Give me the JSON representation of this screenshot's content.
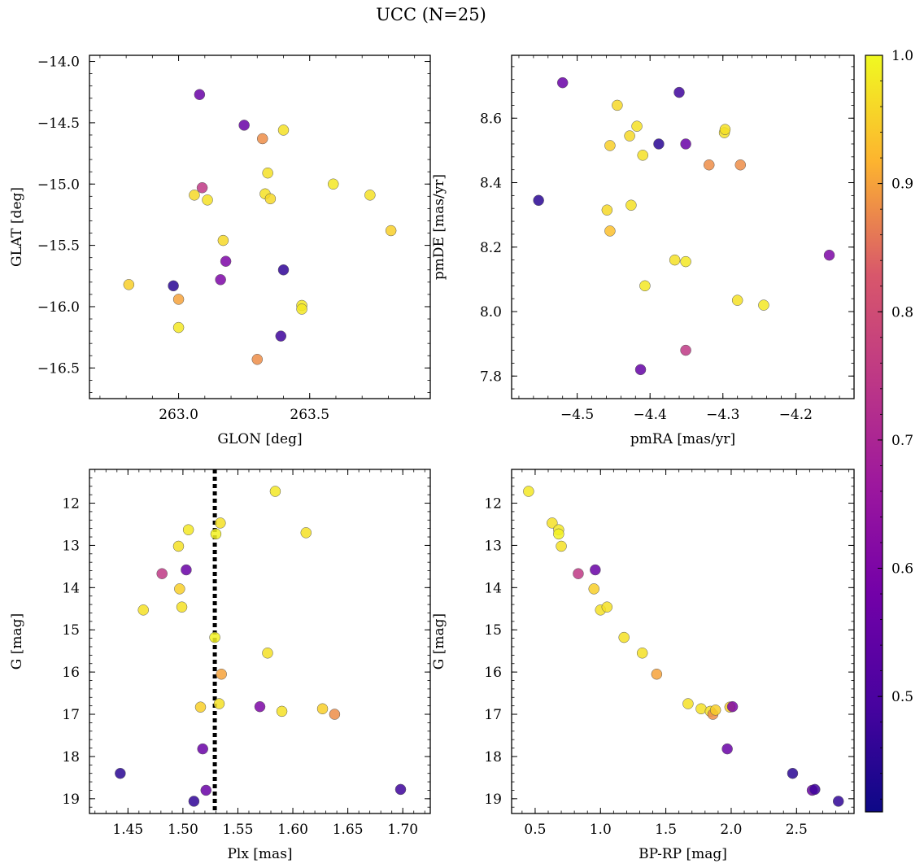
{
  "suptitle": "UCC (N=25)",
  "colorbar": {
    "ticks": [
      0.5,
      0.6,
      0.7,
      0.8,
      0.9,
      1.0
    ],
    "tick_labels": [
      "0.5",
      "0.6",
      "0.7",
      "0.8",
      "0.9",
      "1.0"
    ],
    "range": [
      0.41,
      1.0
    ],
    "colormap": "plasma"
  },
  "chart_data": [
    {
      "type": "scatter",
      "xlabel": "GLON [deg]",
      "ylabel": "GLAT [deg]",
      "xlim": [
        262.66,
        263.96
      ],
      "ylim": [
        -16.75,
        -13.95
      ],
      "xticks": [
        263.0,
        263.5
      ],
      "xtick_labels": [
        "263.0",
        "263.5"
      ],
      "yticks": [
        -14.0,
        -14.5,
        -15.0,
        -15.5,
        -16.0,
        -16.5
      ],
      "ytick_labels": [
        "−14.0",
        "−14.5",
        "−15.0",
        "−15.5",
        "−16.0",
        "−16.5"
      ],
      "x": [
        263.08,
        263.25,
        263.32,
        263.4,
        263.34,
        263.59,
        263.73,
        263.09,
        263.06,
        263.11,
        263.33,
        263.35,
        263.81,
        263.17,
        263.18,
        263.16,
        263.4,
        262.81,
        262.98,
        263.0,
        263.47,
        263.47,
        263.0,
        263.39,
        263.3
      ],
      "y": [
        -14.27,
        -14.52,
        -14.63,
        -14.56,
        -14.91,
        -15.0,
        -15.09,
        -15.03,
        -15.09,
        -15.13,
        -15.08,
        -15.12,
        -15.38,
        -15.46,
        -15.63,
        -15.78,
        -15.7,
        -15.82,
        -15.83,
        -15.94,
        -15.99,
        -16.02,
        -16.17,
        -16.24,
        -16.43
      ],
      "c": [
        0.56,
        0.56,
        0.88,
        0.97,
        0.97,
        0.98,
        0.97,
        0.75,
        0.96,
        0.97,
        0.97,
        0.96,
        0.95,
        0.96,
        0.6,
        0.6,
        0.46,
        0.95,
        0.45,
        0.9,
        0.98,
        0.98,
        0.98,
        0.48,
        0.88
      ]
    },
    {
      "type": "scatter",
      "xlabel": "pmRA [mas/yr]",
      "ylabel": "pmDE [mas/yr]",
      "xlim": [
        -4.59,
        -4.12
      ],
      "ylim": [
        7.73,
        8.795
      ],
      "xticks": [
        -4.5,
        -4.4,
        -4.3,
        -4.2
      ],
      "xtick_labels": [
        "−4.5",
        "−4.4",
        "−4.3",
        "−4.2"
      ],
      "yticks": [
        7.8,
        8.0,
        8.2,
        8.4,
        8.6
      ],
      "ytick_labels": [
        "7.8",
        "8.0",
        "8.2",
        "8.4",
        "8.6"
      ],
      "x": [
        -4.52,
        -4.36,
        -4.445,
        -4.418,
        -4.428,
        -4.455,
        -4.388,
        -4.351,
        -4.41,
        -4.298,
        -4.297,
        -4.319,
        -4.276,
        -4.553,
        -4.426,
        -4.459,
        -4.455,
        -4.366,
        -4.351,
        -4.407,
        -4.154,
        -4.28,
        -4.244,
        -4.351,
        -4.413
      ],
      "y": [
        8.71,
        8.68,
        8.64,
        8.575,
        8.545,
        8.515,
        8.52,
        8.52,
        8.485,
        8.555,
        8.565,
        8.455,
        8.455,
        8.345,
        8.33,
        8.315,
        8.25,
        8.16,
        8.155,
        8.08,
        8.175,
        8.035,
        8.02,
        7.88,
        7.82
      ],
      "c": [
        0.56,
        0.48,
        0.96,
        0.97,
        0.96,
        0.95,
        0.45,
        0.56,
        0.97,
        0.97,
        0.97,
        0.88,
        0.88,
        0.45,
        0.97,
        0.96,
        0.93,
        0.97,
        0.98,
        0.98,
        0.6,
        0.97,
        0.98,
        0.75,
        0.55
      ]
    },
    {
      "type": "scatter",
      "xlabel": "Plx [mas]",
      "ylabel": "G [mag]",
      "xlim": [
        1.415,
        1.725
      ],
      "ylim": [
        19.35,
        11.2
      ],
      "y_inverted": true,
      "vline": 1.529,
      "xticks": [
        1.45,
        1.5,
        1.55,
        1.6,
        1.65,
        1.7
      ],
      "xtick_labels": [
        "1.45",
        "1.50",
        "1.55",
        "1.60",
        "1.65",
        "1.70"
      ],
      "yticks": [
        12,
        13,
        14,
        15,
        16,
        17,
        18,
        19
      ],
      "ytick_labels": [
        "12",
        "13",
        "14",
        "15",
        "16",
        "17",
        "18",
        "19"
      ],
      "x": [
        1.584,
        1.534,
        1.505,
        1.53,
        1.612,
        1.496,
        1.481,
        1.503,
        1.497,
        1.499,
        1.464,
        1.529,
        1.577,
        1.535,
        1.533,
        1.516,
        1.57,
        1.59,
        1.627,
        1.638,
        1.518,
        1.443,
        1.521,
        1.51,
        1.698
      ],
      "y": [
        11.72,
        12.47,
        12.63,
        12.73,
        12.7,
        13.02,
        13.67,
        13.58,
        14.03,
        14.46,
        14.53,
        15.18,
        15.55,
        16.05,
        16.75,
        16.83,
        16.82,
        16.93,
        16.87,
        17.0,
        17.82,
        18.4,
        18.8,
        19.06,
        18.78
      ],
      "c": [
        0.98,
        0.97,
        0.98,
        0.99,
        0.97,
        0.97,
        0.75,
        0.56,
        0.95,
        0.97,
        0.97,
        0.99,
        0.97,
        0.9,
        0.97,
        0.95,
        0.6,
        0.97,
        0.95,
        0.88,
        0.56,
        0.45,
        0.56,
        0.46,
        0.48
      ]
    },
    {
      "type": "scatter",
      "xlabel": "BP-RP [mag]",
      "ylabel": "G [mag]",
      "xlim": [
        0.32,
        2.94
      ],
      "ylim": [
        19.35,
        11.2
      ],
      "y_inverted": true,
      "xticks": [
        0.5,
        1.0,
        1.5,
        2.0,
        2.5
      ],
      "xtick_labels": [
        "0.5",
        "1.0",
        "1.5",
        "2.0",
        "2.5"
      ],
      "yticks": [
        12,
        13,
        14,
        15,
        16,
        17,
        18,
        19
      ],
      "ytick_labels": [
        "12",
        "13",
        "14",
        "15",
        "16",
        "17",
        "18",
        "19"
      ],
      "x": [
        0.45,
        0.63,
        0.68,
        0.68,
        0.7,
        0.83,
        0.95,
        0.96,
        1.0,
        1.05,
        1.18,
        1.32,
        1.43,
        1.67,
        1.77,
        1.84,
        1.86,
        1.99,
        2.01,
        1.97,
        2.47,
        2.62,
        2.64,
        2.82,
        1.88
      ],
      "y": [
        11.72,
        12.47,
        12.63,
        12.73,
        13.02,
        13.67,
        14.03,
        13.58,
        14.53,
        14.46,
        15.18,
        15.55,
        16.05,
        16.75,
        16.87,
        16.93,
        17.0,
        16.83,
        16.82,
        17.82,
        18.4,
        18.8,
        18.78,
        19.06,
        16.9
      ],
      "c": [
        0.98,
        0.97,
        0.98,
        0.99,
        0.97,
        0.75,
        0.95,
        0.56,
        0.97,
        0.97,
        0.97,
        0.97,
        0.9,
        0.97,
        0.97,
        0.97,
        0.88,
        0.95,
        0.6,
        0.56,
        0.45,
        0.56,
        0.48,
        0.46,
        0.95
      ]
    }
  ]
}
